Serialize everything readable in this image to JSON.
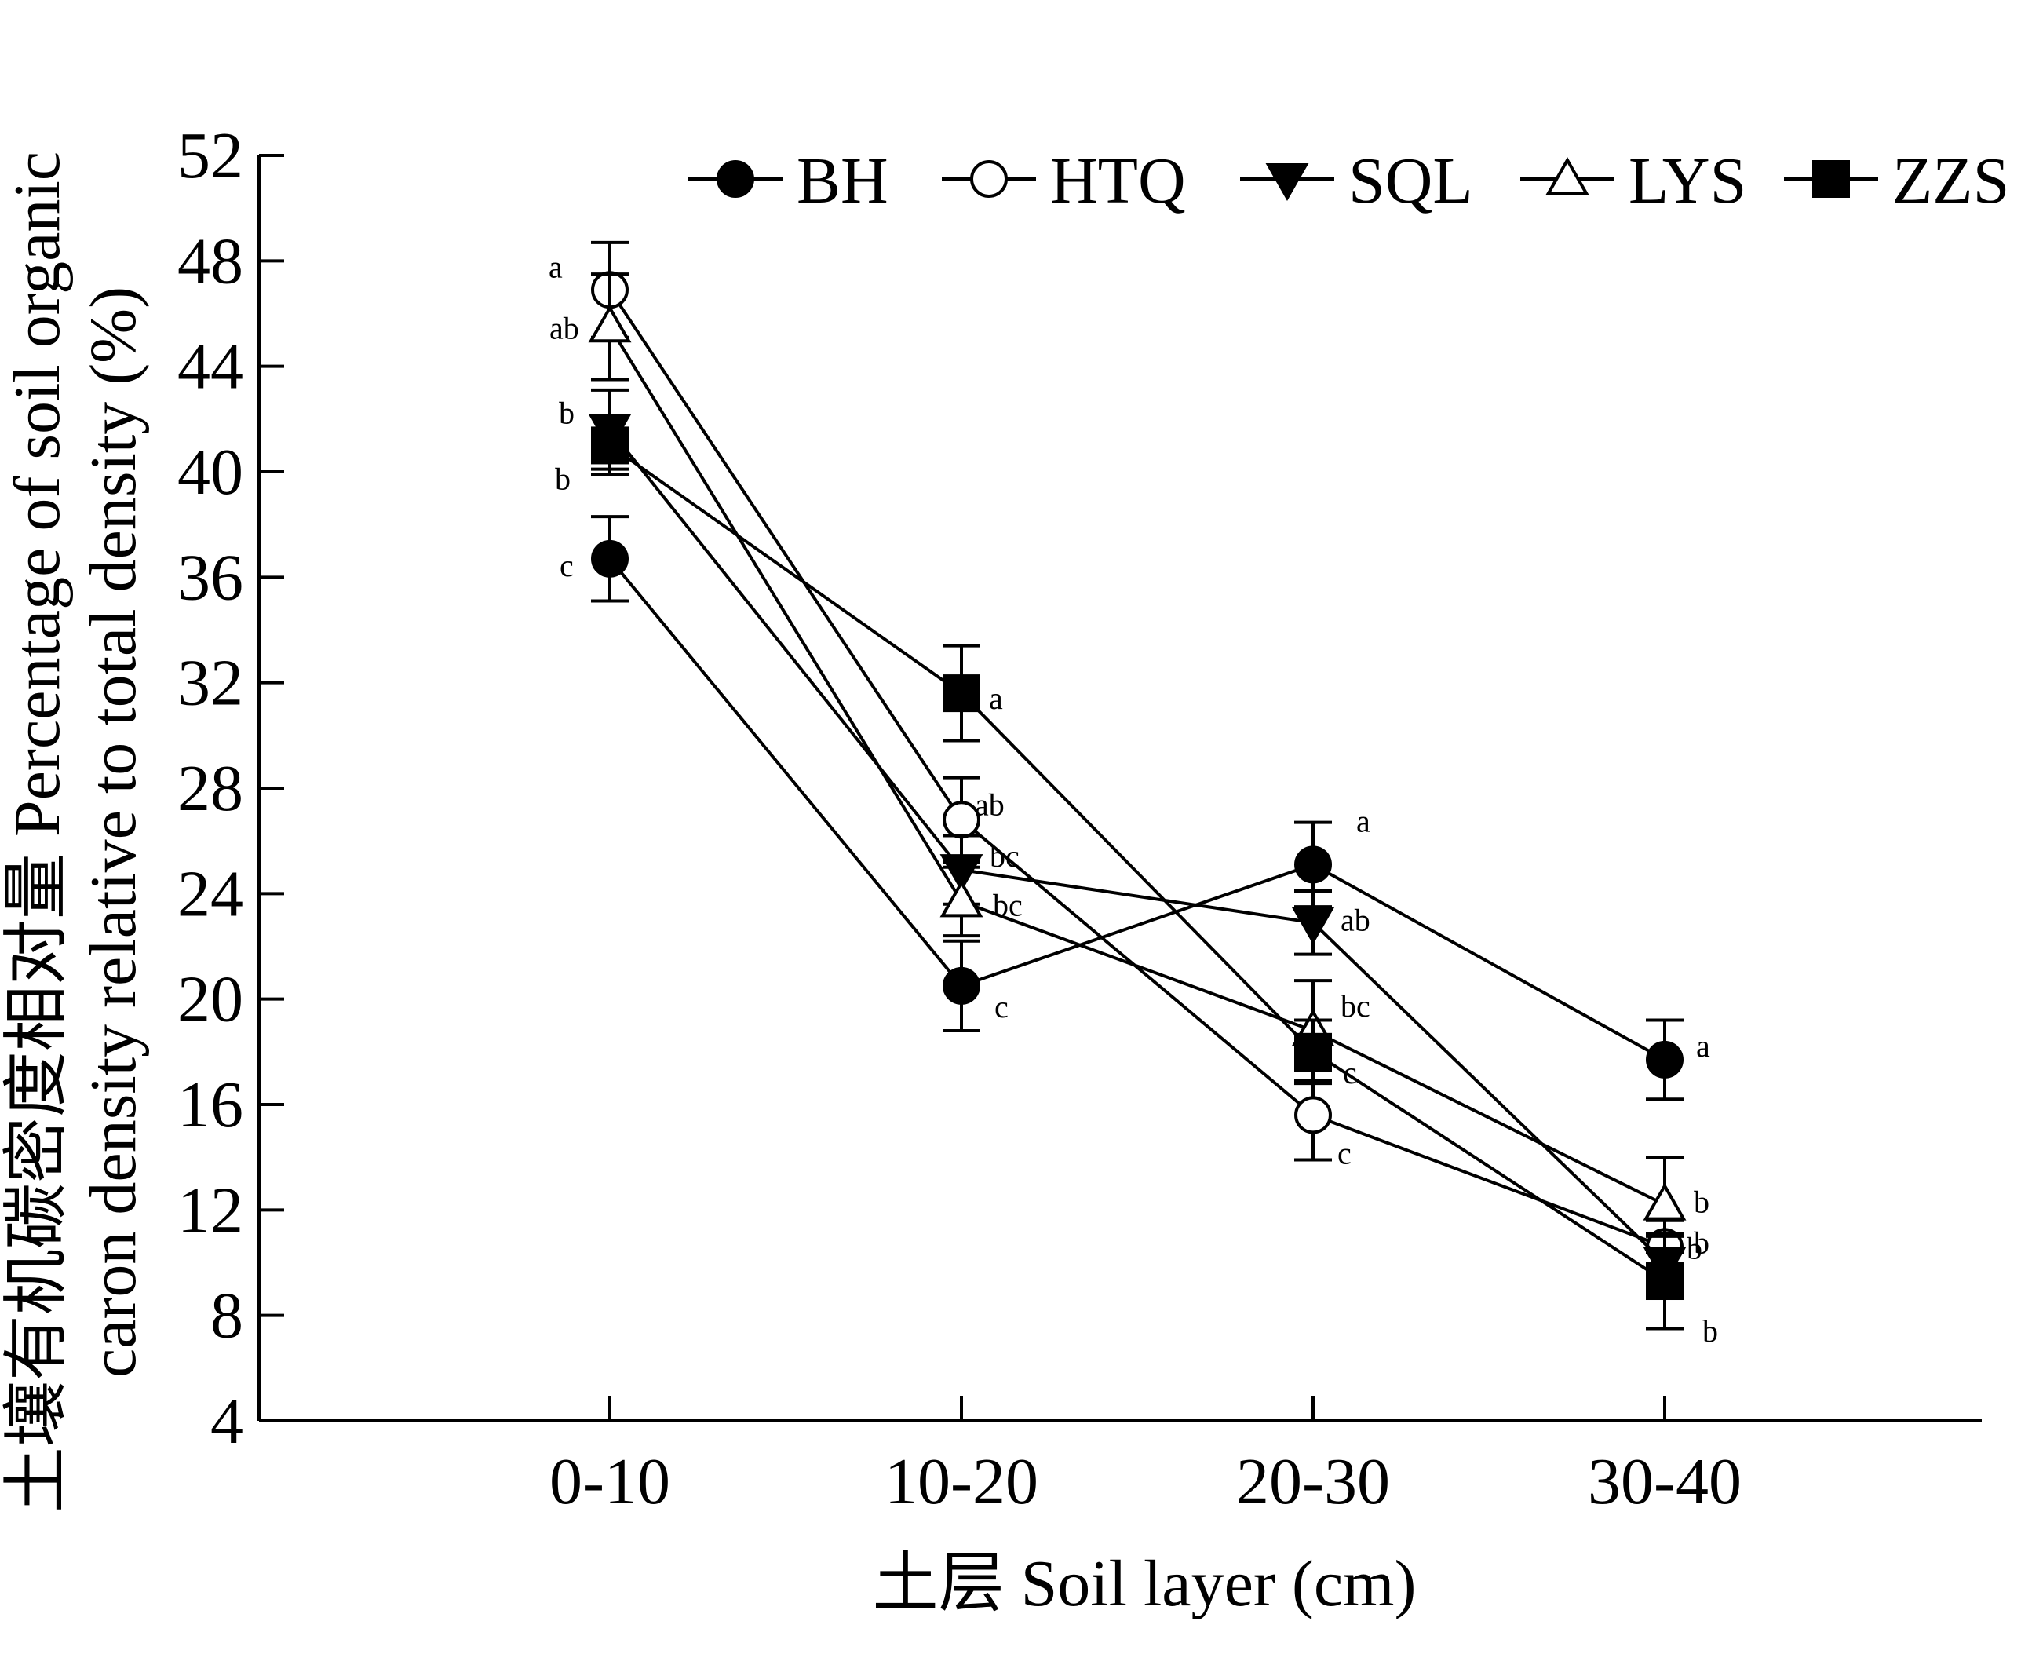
{
  "chart_data": {
    "type": "line",
    "title": "",
    "xlabel": "土层 Soil layer (cm)",
    "ylabel_line1": "土壤有机碳密度相对量 Percentage of soil organic",
    "ylabel_line2": "caron density relative to total density (%)",
    "categories": [
      "0-10",
      "10-20",
      "20-30",
      "30-40"
    ],
    "ylim": [
      4,
      52
    ],
    "yticks": [
      4,
      8,
      12,
      16,
      20,
      24,
      28,
      32,
      36,
      40,
      44,
      48,
      52
    ],
    "grid": false,
    "legend_position": "top",
    "series": [
      {
        "name": "BH",
        "marker": "circle-filled",
        "values": [
          36.7,
          20.5,
          25.1,
          17.7
        ],
        "errors": [
          1.6,
          1.7,
          1.6,
          1.5
        ],
        "labels": [
          "c",
          "c",
          "a",
          "a"
        ]
      },
      {
        "name": "HTQ",
        "marker": "circle-open",
        "values": [
          46.9,
          26.8,
          15.6,
          10.6
        ],
        "errors": [
          1.8,
          1.6,
          1.7,
          1.0
        ],
        "labels": [
          "a",
          "ab",
          "c",
          "b"
        ]
      },
      {
        "name": "SQL",
        "marker": "triangle-down-filled",
        "values": [
          41.6,
          24.9,
          22.9,
          10.0
        ],
        "errors": [
          1.5,
          1.3,
          1.2,
          1.0
        ],
        "labels": [
          "b",
          "bc",
          "ab",
          "b"
        ]
      },
      {
        "name": "LYS",
        "marker": "triangle-up-open",
        "values": [
          45.5,
          23.7,
          18.8,
          12.2
        ],
        "errors": [
          2.0,
          1.3,
          1.9,
          1.8
        ],
        "labels": [
          "ab",
          "bc",
          "bc",
          "b"
        ]
      },
      {
        "name": "ZZS",
        "marker": "square-filled",
        "values": [
          41.0,
          31.6,
          18.0,
          9.3
        ],
        "errors": [
          1.1,
          1.8,
          1.2,
          1.8
        ],
        "labels": [
          "b",
          "a",
          "c",
          "b"
        ]
      }
    ]
  }
}
